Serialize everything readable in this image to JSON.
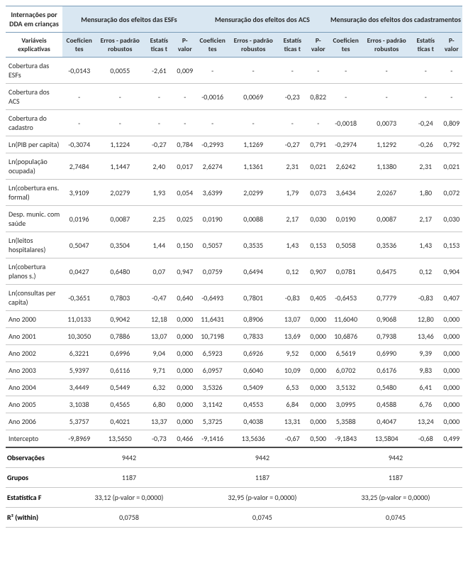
{
  "header": {
    "corner_top": "Internações por DDA em crianças",
    "group_esf": "Mensuração dos efeitos das ESFs",
    "group_acs": "Mensuração dos efeitos dos ACS",
    "group_cad": "Mensuração dos efeitos dos cadastramentos",
    "corner_bottom": "Variáveis explicativas",
    "sub": {
      "coef": "Coeficien tes",
      "erros": "Erros - padrão robustos",
      "estat": "Estatís ticas t",
      "pval": "P- valor"
    }
  },
  "rows": [
    {
      "label": "Cobertura das ESFs",
      "esf": [
        "-0,0143",
        "0,0055",
        "-2,61",
        "0,009"
      ],
      "acs": [
        "-",
        "-",
        "-",
        "-"
      ],
      "cad": [
        "-",
        "-",
        "-",
        "-"
      ]
    },
    {
      "label": "Cobertura dos ACS",
      "esf": [
        "-",
        "-",
        "-",
        "-"
      ],
      "acs": [
        "-0,0016",
        "0,0069",
        "-0,23",
        "0,822"
      ],
      "cad": [
        "-",
        "-",
        "-",
        "-"
      ]
    },
    {
      "label": "Cobertura do cadastro",
      "esf": [
        "-",
        "-",
        "-",
        "-"
      ],
      "acs": [
        "-",
        "-",
        "-",
        "-"
      ],
      "cad": [
        "-0,0018",
        "0,0073",
        "-0,24",
        "0,809"
      ]
    },
    {
      "label": "Ln(PIB per capita)",
      "esf": [
        "-0,3074",
        "1,1224",
        "-0,27",
        "0,784"
      ],
      "acs": [
        "-0,2993",
        "1,1269",
        "-0,27",
        "0,791"
      ],
      "cad": [
        "-0,2974",
        "1,1292",
        "-0,26",
        "0,792"
      ]
    },
    {
      "label": "Ln(população ocupada)",
      "esf": [
        "2,7484",
        "1,1447",
        "2,40",
        "0,017"
      ],
      "acs": [
        "2,6274",
        "1,1361",
        "2,31",
        "0,021"
      ],
      "cad": [
        "2,6242",
        "1,1380",
        "2,31",
        "0,021"
      ]
    },
    {
      "label": "Ln(cobertura ens. formal)",
      "esf": [
        "3,9109",
        "2,0279",
        "1,93",
        "0,054"
      ],
      "acs": [
        "3,6399",
        "2,0299",
        "1,79",
        "0,073"
      ],
      "cad": [
        "3,6434",
        "2,0267",
        "1,80",
        "0,072"
      ]
    },
    {
      "label": "Desp. munic. com saúde",
      "esf": [
        "0,0196",
        "0,0087",
        "2,25",
        "0,025"
      ],
      "acs": [
        "0,0190",
        "0,0088",
        "2,17",
        "0,030"
      ],
      "cad": [
        "0,0190",
        "0,0087",
        "2,17",
        "0,030"
      ]
    },
    {
      "label": "Ln(leitos hospitalares)",
      "esf": [
        "0,5047",
        "0,3504",
        "1,44",
        "0,150"
      ],
      "acs": [
        "0,5057",
        "0,3535",
        "1,43",
        "0,153"
      ],
      "cad": [
        "0,5058",
        "0,3536",
        "1,43",
        "0,153"
      ]
    },
    {
      "label": "Ln(cobertura planos s.)",
      "esf": [
        "0,0427",
        "0,6480",
        "0,07",
        "0,947"
      ],
      "acs": [
        "0,0759",
        "0,6494",
        "0,12",
        "0,907"
      ],
      "cad": [
        "0,0781",
        "0,6475",
        "0,12",
        "0,904"
      ]
    },
    {
      "label": "Ln(consultas per capita)",
      "esf": [
        "-0,3651",
        "0,7803",
        "-0,47",
        "0,640"
      ],
      "acs": [
        "-0,6493",
        "0,7801",
        "-0,83",
        "0,405"
      ],
      "cad": [
        "-0,6453",
        "0,7779",
        "-0,83",
        "0,407"
      ]
    },
    {
      "label": "Ano 2000",
      "esf": [
        "11,0133",
        "0,9042",
        "12,18",
        "0,000"
      ],
      "acs": [
        "11,6431",
        "0,8906",
        "13,07",
        "0,000"
      ],
      "cad": [
        "11,6040",
        "0,9068",
        "12,80",
        "0,000"
      ]
    },
    {
      "label": "Ano 2001",
      "esf": [
        "10,3050",
        "0,7886",
        "13,07",
        "0,000"
      ],
      "acs": [
        "10,7198",
        "0,7833",
        "13,69",
        "0,000"
      ],
      "cad": [
        "10,6876",
        "0,7938",
        "13,46",
        "0,000"
      ]
    },
    {
      "label": "Ano 2002",
      "esf": [
        "6,3221",
        "0,6996",
        "9,04",
        "0,000"
      ],
      "acs": [
        "6,5923",
        "0,6926",
        "9,52",
        "0,000"
      ],
      "cad": [
        "6,5619",
        "0,6990",
        "9,39",
        "0,000"
      ]
    },
    {
      "label": "Ano 2003",
      "esf": [
        "5,9397",
        "0,6116",
        "9,71",
        "0,000"
      ],
      "acs": [
        "6,0957",
        "0,6040",
        "10,09",
        "0,000"
      ],
      "cad": [
        "6,0702",
        "0,6176",
        "9,83",
        "0,000"
      ]
    },
    {
      "label": "Ano 2004",
      "esf": [
        "3,4449",
        "0,5449",
        "6,32",
        "0,000"
      ],
      "acs": [
        "3,5326",
        "0,5409",
        "6,53",
        "0,000"
      ],
      "cad": [
        "3,5132",
        "0,5480",
        "6,41",
        "0,000"
      ]
    },
    {
      "label": "Ano 2005",
      "esf": [
        "3,1038",
        "0,4565",
        "6,80",
        "0,000"
      ],
      "acs": [
        "3,1142",
        "0,4553",
        "6,84",
        "0,000"
      ],
      "cad": [
        "3,0995",
        "0,4588",
        "6,76",
        "0,000"
      ]
    },
    {
      "label": "Ano 2006",
      "esf": [
        "5,3757",
        "0,4021",
        "13,37",
        "0,000"
      ],
      "acs": [
        "5,3725",
        "0,4038",
        "13,31",
        "0,000"
      ],
      "cad": [
        "5,3588",
        "0,4047",
        "13,24",
        "0,000"
      ]
    },
    {
      "label": "Intercepto",
      "esf": [
        "-9,8969",
        "13,5650",
        "-0,73",
        "0,466"
      ],
      "acs": [
        "-9,1416",
        "13,5636",
        "-0,67",
        "0,500"
      ],
      "cad": [
        "-9,1843",
        "13,5804",
        "-0,68",
        "0,499"
      ]
    }
  ],
  "footer": [
    {
      "label": "Observações",
      "vals": [
        "9442",
        "9442",
        "9442"
      ]
    },
    {
      "label": "Grupos",
      "vals": [
        "1187",
        "1187",
        "1187"
      ]
    },
    {
      "label": "Estatística F",
      "vals": [
        "33,12 (p-valor = 0,0000)",
        "32,95 (p-valor = 0,0000)",
        "33,25 (p-valor = 0,0000)"
      ]
    },
    {
      "label": "R² (within)",
      "vals": [
        "0,0758",
        "0,0745",
        "0,0745"
      ]
    }
  ],
  "style": {
    "header_bg": "#d9e7f2",
    "header_border": "#7a9cb8",
    "row_border": "#c8c8c8",
    "section_border": "#4a4a4a",
    "font_size_body": 10,
    "font_size_sub": 9.5,
    "text_color": "#2a2a2a"
  }
}
